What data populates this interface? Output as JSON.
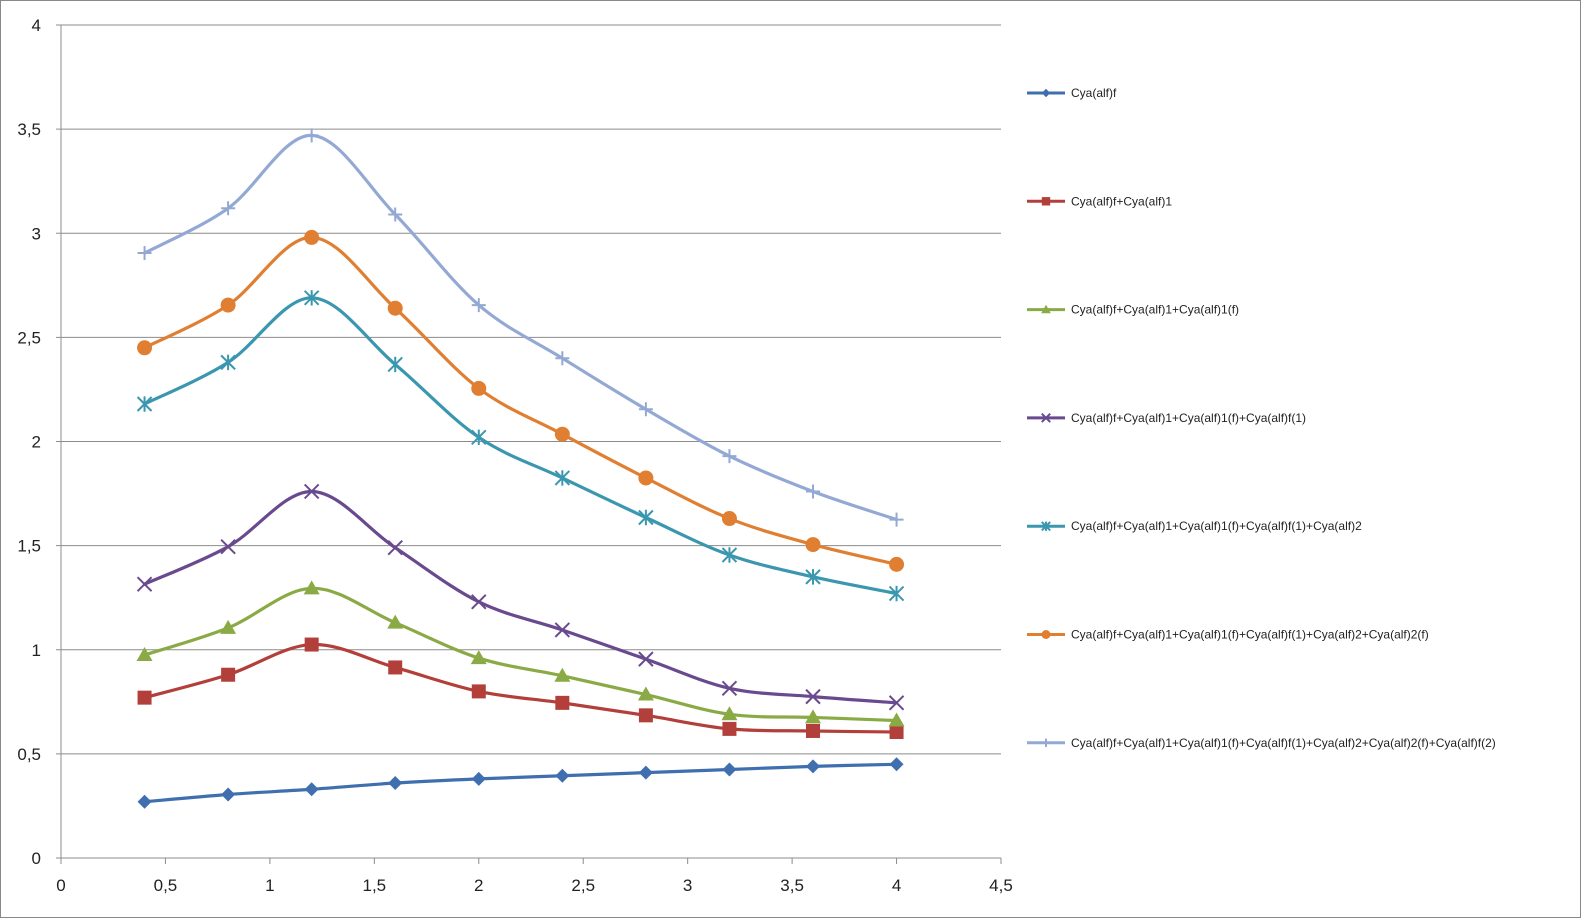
{
  "chart_data": {
    "type": "scatter",
    "title": "",
    "xlabel": "",
    "ylabel": "",
    "xlim": [
      0,
      4.5
    ],
    "ylim": [
      0,
      4
    ],
    "x_ticks": [
      "0",
      "0,5",
      "1",
      "1,5",
      "2",
      "2,5",
      "3",
      "3,5",
      "4",
      "4,5"
    ],
    "y_ticks": [
      "0",
      "0,5",
      "1",
      "1,5",
      "2",
      "2,5",
      "3",
      "3,5",
      "4"
    ],
    "grid": "horizontal",
    "legend_position": "right",
    "x": [
      0.4,
      0.8,
      1.2,
      1.6,
      2.0,
      2.4,
      2.8,
      3.2,
      3.6,
      4.0
    ],
    "series": [
      {
        "name": "Cya(alf)f",
        "color": "#3f6fae",
        "marker": "diamond",
        "values": [
          0.27,
          0.305,
          0.33,
          0.36,
          0.38,
          0.395,
          0.41,
          0.425,
          0.44,
          0.45
        ]
      },
      {
        "name": "Cya(alf)f+Cya(alf)1",
        "color": "#b33f3b",
        "marker": "square",
        "values": [
          0.77,
          0.88,
          1.025,
          0.915,
          0.8,
          0.745,
          0.685,
          0.62,
          0.61,
          0.605
        ]
      },
      {
        "name": "Cya(alf)f+Cya(alf)1+Cya(alf)1(f)",
        "color": "#8aaa45",
        "marker": "triangle",
        "values": [
          0.975,
          1.105,
          1.295,
          1.13,
          0.96,
          0.875,
          0.785,
          0.69,
          0.675,
          0.66
        ]
      },
      {
        "name": "Cya(alf)f+Cya(alf)1+Cya(alf)1(f)+Cya(alf)f(1)",
        "color": "#6a4a8e",
        "marker": "x",
        "values": [
          1.315,
          1.495,
          1.76,
          1.49,
          1.23,
          1.095,
          0.955,
          0.815,
          0.775,
          0.745
        ]
      },
      {
        "name": "Cya(alf)f+Cya(alf)1+Cya(alf)1(f)+Cya(alf)f(1)+Cya(alf)2",
        "color": "#3a97af",
        "marker": "star",
        "values": [
          2.18,
          2.38,
          2.69,
          2.37,
          2.02,
          1.825,
          1.635,
          1.455,
          1.35,
          1.27
        ]
      },
      {
        "name": "Cya(alf)f+Cya(alf)1+Cya(alf)1(f)+Cya(alf)f(1)+Cya(alf)2+Cya(alf)2(f)",
        "color": "#e07f32",
        "marker": "circle",
        "values": [
          2.45,
          2.655,
          2.98,
          2.64,
          2.255,
          2.035,
          1.825,
          1.63,
          1.505,
          1.41
        ]
      },
      {
        "name": "Cya(alf)f+Cya(alf)1+Cya(alf)1(f)+Cya(alf)f(1)+Cya(alf)2+Cya(alf)2(f)+Cya(alf)f(2)",
        "color": "#93a9d4",
        "marker": "plus",
        "values": [
          2.905,
          3.12,
          3.47,
          3.09,
          2.655,
          2.4,
          2.155,
          1.93,
          1.76,
          1.625
        ]
      }
    ]
  }
}
